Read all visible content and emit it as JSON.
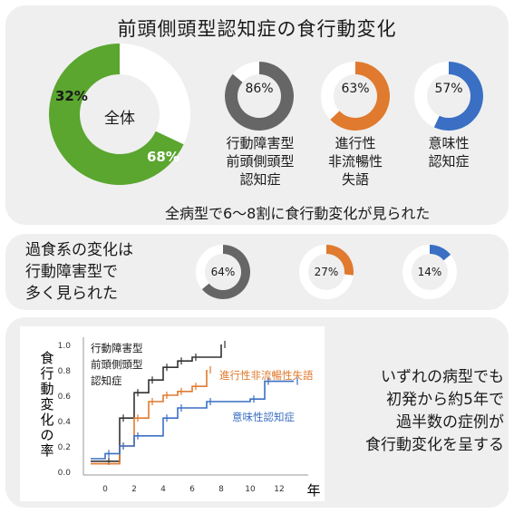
{
  "title": "前頭側頭型認知症の食行動変化",
  "overall": {
    "label": "全体",
    "yes_pct": 68,
    "no_pct": 32,
    "yes_text": "68%",
    "no_text": "32%",
    "color": "#5aa62f"
  },
  "subtypes": [
    {
      "pct": 86,
      "text": "86%",
      "caption": [
        "行動障害型",
        "前頭側頭型",
        "認知症"
      ],
      "color": "#666666"
    },
    {
      "pct": 63,
      "text": "63%",
      "caption": [
        "進行性",
        "非流暢性",
        "失語"
      ],
      "color": "#e07a2e"
    },
    {
      "pct": 57,
      "text": "57%",
      "caption": [
        "意味性",
        "認知症"
      ],
      "color": "#3a6fc4"
    }
  ],
  "summary1": "全病型で6～8割に食行動変化が見られた",
  "overeating": {
    "text": [
      "過食系の変化は",
      "行動障害型で",
      "多く見られた"
    ],
    "items": [
      {
        "pct": 64,
        "text": "64%",
        "color": "#666666"
      },
      {
        "pct": 27,
        "text": "27%",
        "color": "#e07a2e"
      },
      {
        "pct": 14,
        "text": "14%",
        "color": "#3a6fc4"
      }
    ]
  },
  "chart_data": {
    "type": "line",
    "subtype": "step (Kaplan-Meier cumulative incidence)",
    "ylabel": "食行動変化の率",
    "xunit": "年",
    "xticks": [
      0,
      2,
      4,
      6,
      8,
      10,
      12
    ],
    "yticks": [
      "0.0",
      "0.2",
      "0.4",
      "0.6",
      "0.8",
      "1.0"
    ],
    "xlim": [
      -1.5,
      14
    ],
    "ylim": [
      0,
      1
    ],
    "series": [
      {
        "name": "行動障害型前頭側頭型認知症",
        "label_lines": [
          "行動障害型",
          "前頭側頭型",
          "認知症"
        ],
        "color": "#333333",
        "points": [
          [
            -1,
            0.08
          ],
          [
            0,
            0.08
          ],
          [
            1,
            0.42
          ],
          [
            2,
            0.62
          ],
          [
            3,
            0.72
          ],
          [
            4,
            0.82
          ],
          [
            5,
            0.87
          ],
          [
            6,
            0.9
          ],
          [
            8,
            1.0
          ]
        ]
      },
      {
        "name": "進行性非流暢性失語",
        "color": "#e07a2e",
        "points": [
          [
            -1,
            0.06
          ],
          [
            1,
            0.2
          ],
          [
            2,
            0.42
          ],
          [
            3,
            0.55
          ],
          [
            4,
            0.6
          ],
          [
            5,
            0.63
          ],
          [
            6,
            0.67
          ],
          [
            7,
            0.8
          ]
        ]
      },
      {
        "name": "意味性認知症",
        "color": "#3a6fc4",
        "points": [
          [
            -1,
            0.1
          ],
          [
            0,
            0.14
          ],
          [
            1,
            0.2
          ],
          [
            2,
            0.28
          ],
          [
            4,
            0.42
          ],
          [
            5,
            0.5
          ],
          [
            7,
            0.55
          ],
          [
            10,
            0.57
          ],
          [
            11,
            0.71
          ],
          [
            13,
            0.71
          ]
        ]
      }
    ]
  },
  "conclusion": [
    "いずれの病型でも",
    "初発から約5年で",
    "過半数の症例が",
    "食行動変化を呈する"
  ]
}
